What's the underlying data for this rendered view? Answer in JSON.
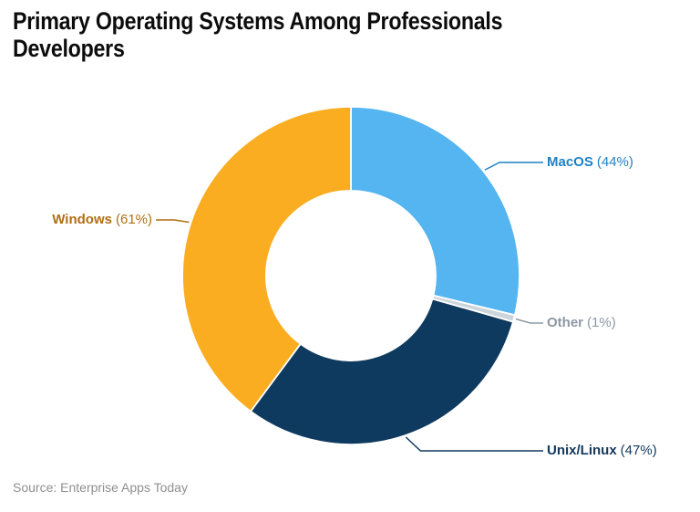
{
  "title_lines": [
    "Primary Operating Systems Among Professionals",
    "Developers"
  ],
  "source": "Source: Enterprise Apps Today",
  "chart_data": {
    "type": "pie",
    "subtype": "donut",
    "title": "Primary Operating Systems Among Professionals Developers",
    "categories": [
      "MacOS",
      "Other",
      "Unix/Linux",
      "Windows"
    ],
    "values": [
      44,
      1,
      47,
      61
    ],
    "slices": [
      {
        "name": "MacOS",
        "value": 44,
        "pct_label": "(44%)",
        "color": "#55B5F0",
        "label_color": "#1E82C5"
      },
      {
        "name": "Other",
        "value": 1,
        "pct_label": "(1%)",
        "color": "#CDD5DC",
        "label_color": "#8D98A4"
      },
      {
        "name": "Unix/Linux",
        "value": 47,
        "pct_label": "(47%)",
        "color": "#0E3A5F",
        "label_color": "#12395E"
      },
      {
        "name": "Windows",
        "value": 61,
        "pct_label": "(61%)",
        "color": "#FBAD21",
        "label_color": "#B06F12"
      }
    ],
    "start_angle_deg": 0,
    "direction": "clockwise",
    "donut_hole_ratio": 0.5,
    "legend_position": "none",
    "labels": "outside-with-leader-lines",
    "separator_color": "#ffffff"
  }
}
